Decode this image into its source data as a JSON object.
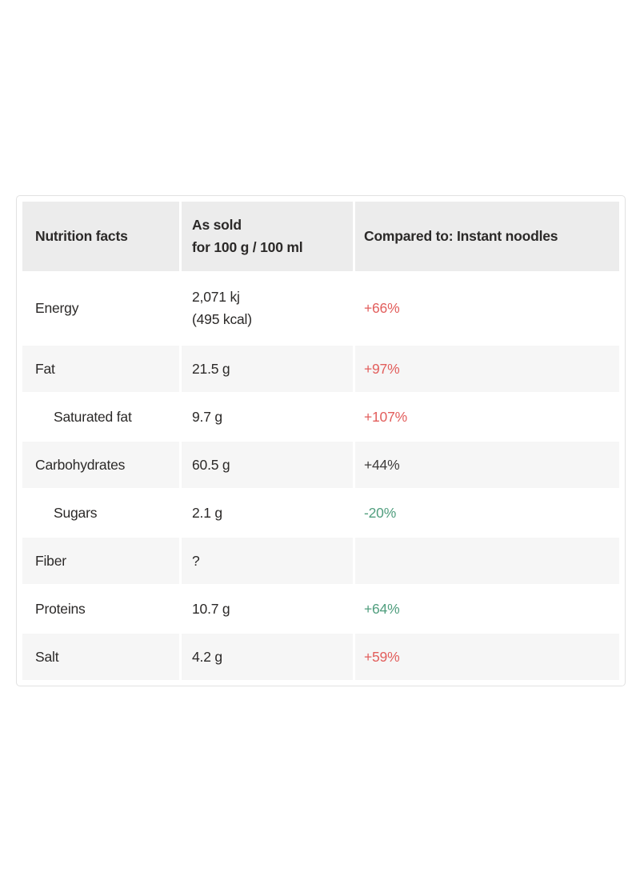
{
  "table": {
    "header": {
      "col1": "Nutrition facts",
      "col2": "As sold\nfor 100 g / 100 ml",
      "col3": "Compared to: Instant noodles"
    },
    "rows": [
      {
        "label": "Energy",
        "indent": false,
        "value": "2,071 kj\n(495 kcal)",
        "comparison": "+66%",
        "comparison_color": "#e25e5c"
      },
      {
        "label": "Fat",
        "indent": false,
        "value": "21.5 g",
        "comparison": "+97%",
        "comparison_color": "#e25e5c"
      },
      {
        "label": "Saturated fat",
        "indent": true,
        "value": "9.7 g",
        "comparison": "+107%",
        "comparison_color": "#e25e5c"
      },
      {
        "label": "Carbohydrates",
        "indent": false,
        "value": "60.5 g",
        "comparison": "+44%",
        "comparison_color": "#3f3d3c"
      },
      {
        "label": "Sugars",
        "indent": true,
        "value": "2.1 g",
        "comparison": "-20%",
        "comparison_color": "#509e7e"
      },
      {
        "label": "Fiber",
        "indent": false,
        "value": "?",
        "comparison": "",
        "comparison_color": "#3f3d3c"
      },
      {
        "label": "Proteins",
        "indent": false,
        "value": "10.7 g",
        "comparison": "+64%",
        "comparison_color": "#509e7e"
      },
      {
        "label": "Salt",
        "indent": false,
        "value": "4.2 g",
        "comparison": "+59%",
        "comparison_color": "#e25e5c"
      }
    ],
    "colors": {
      "increase_bad": "#e25e5c",
      "decrease_good": "#509e7e",
      "neutral": "#3f3d3c",
      "header_bg": "#ececec",
      "stripe_bg": "#f6f6f6",
      "border": "#e2e2e2",
      "text": "#2b2928"
    }
  },
  "chart_data": {
    "type": "table",
    "title": "Nutrition facts",
    "columns": [
      "Nutrition facts",
      "As sold for 100 g / 100 ml",
      "Compared to: Instant noodles"
    ],
    "rows": [
      [
        "Energy",
        "2,071 kj (495 kcal)",
        "+66%"
      ],
      [
        "Fat",
        "21.5 g",
        "+97%"
      ],
      [
        "Saturated fat",
        "9.7 g",
        "+107%"
      ],
      [
        "Carbohydrates",
        "60.5 g",
        "+44%"
      ],
      [
        "Sugars",
        "2.1 g",
        "-20%"
      ],
      [
        "Fiber",
        "?",
        ""
      ],
      [
        "Proteins",
        "10.7 g",
        "+64%"
      ],
      [
        "Salt",
        "4.2 g",
        "+59%"
      ]
    ],
    "comparison_reference": "Instant noodles",
    "comparison_values_pct": [
      66,
      97,
      107,
      44,
      -20,
      null,
      64,
      59
    ]
  }
}
